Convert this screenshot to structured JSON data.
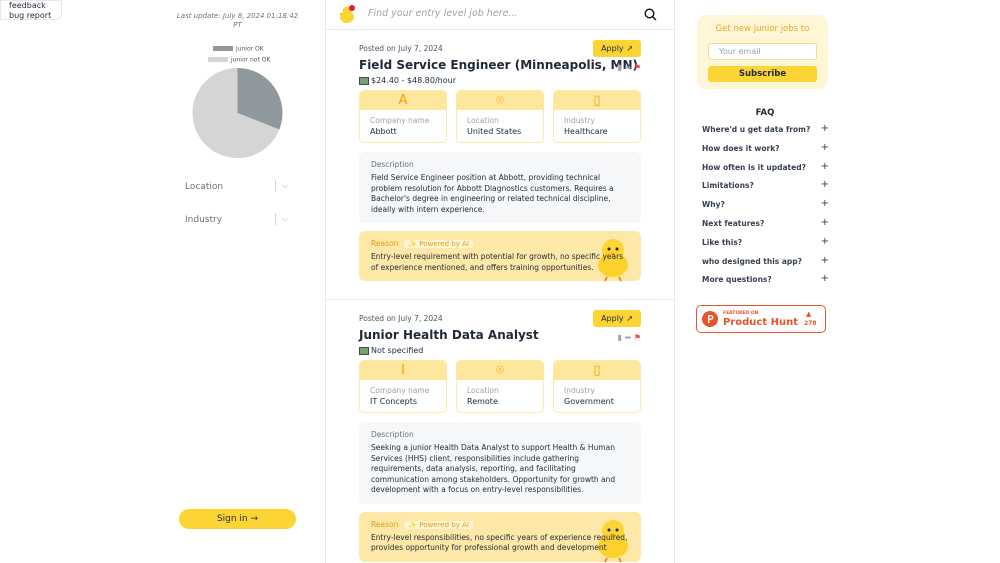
{
  "feedback": {
    "items": [
      "feedback",
      "bug report"
    ]
  },
  "sidebar": {
    "last_update": "Last update: July 8, 2024 01:18:42 PT",
    "chart": {
      "type": "pie",
      "series": [
        {
          "name": "junior OK",
          "color": "#8f989c",
          "value": 31
        },
        {
          "name": "junior not OK",
          "color": "#d5d5d5",
          "value": 69
        }
      ]
    },
    "filters": [
      "Location",
      "Industry"
    ],
    "sign_in": "Sign in →"
  },
  "search": {
    "placeholder": "Find your entry level job here..."
  },
  "jobs": [
    {
      "posted": "Posted on July 7, 2024",
      "apply": "Apply",
      "title": "Field Service Engineer (Minneapolis, MN)",
      "salary": "$24.40 - $48.80/hour",
      "initial": "A",
      "company_label": "Company name",
      "company": "Abbott",
      "location_label": "Location",
      "location": "United States",
      "industry_label": "Industry",
      "industry": "Healthcare",
      "description_label": "Description",
      "description": "Field Service Engineer position at Abbott, providing technical problem resolution for Abbott Diagnostics customers. Requires a Bachelor's degree in engineering or related technical discipline, ideally with intern experience.",
      "reason_label": "Reason",
      "powered": "✨ Powered by AI",
      "reason": "Entry-level requirement with potential for growth, no specific years of experience mentioned, and offers training opportunities."
    },
    {
      "posted": "Posted on July 7, 2024",
      "apply": "Apply",
      "title": "Junior Health Data Analyst",
      "salary": "Not specified",
      "initial": "I",
      "company_label": "Company name",
      "company": "IT Concepts",
      "location_label": "Location",
      "location": "Remote",
      "industry_label": "Industry",
      "industry": "Government",
      "description_label": "Description",
      "description": "Seeking a junior Health Data Analyst to support Health & Human Services (HHS) client, responsibilities include gathering requirements, data analysis, reporting, and facilitating communication among stakeholders. Opportunity for growth and development with a focus on entry-level responsibilities.",
      "reason_label": "Reason",
      "powered": "✨ Powered by AI",
      "reason": "Entry-level responsibilities, no specific years of experience required, provides opportunity for professional growth and development"
    }
  ],
  "subscribe": {
    "title": "Get new junior jobs to",
    "placeholder": "Your email",
    "button": "Subscribe"
  },
  "faq": {
    "title": "FAQ",
    "items": [
      "Where'd u get data from?",
      "How does it work?",
      "How often is it updated?",
      "Limitations?",
      "Why?",
      "Next features?",
      "Like this?",
      "who designed this app?",
      "More questions?"
    ]
  },
  "product_hunt": {
    "featured": "FEATURED ON",
    "name": "Product Hunt",
    "votes": 278
  }
}
